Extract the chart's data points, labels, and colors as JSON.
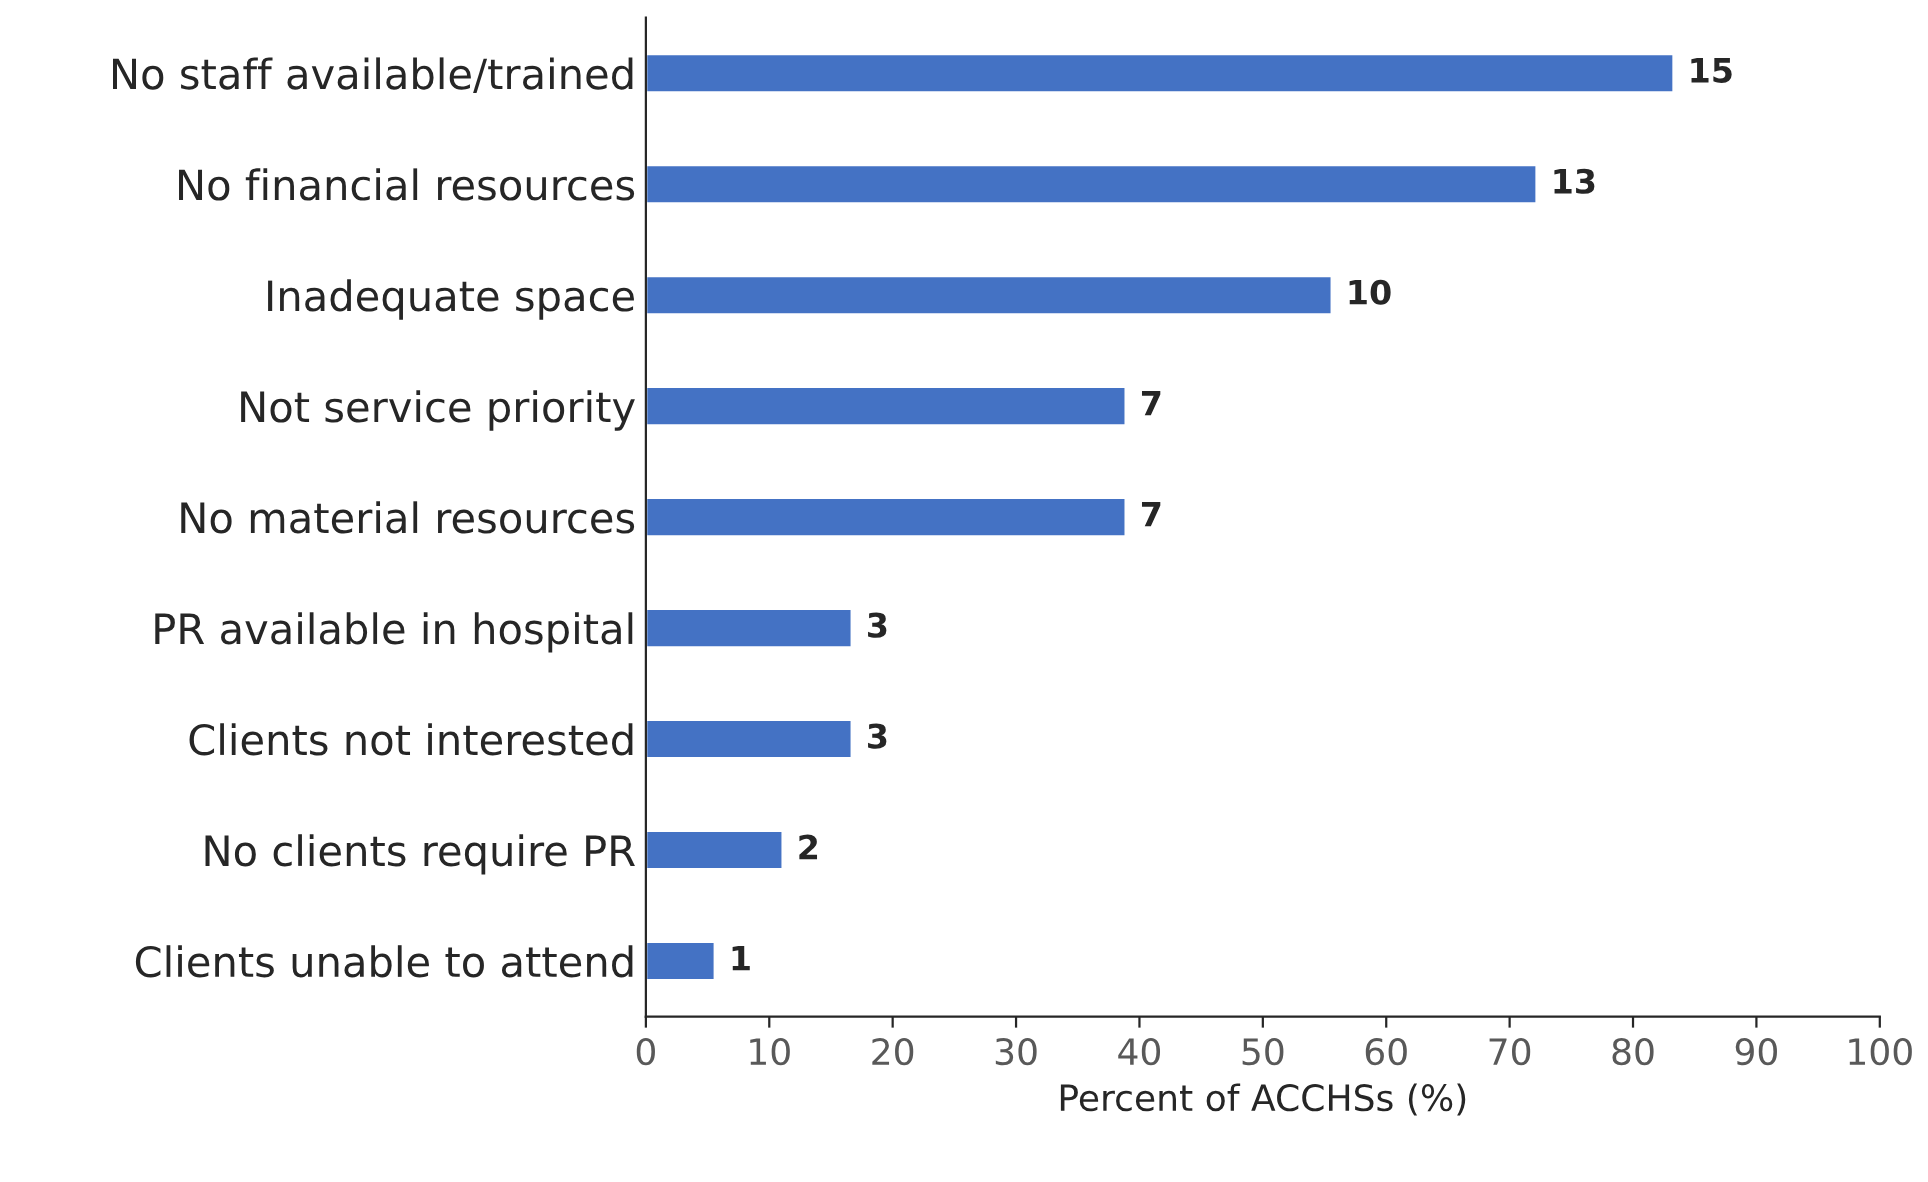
{
  "chart_data": {
    "type": "bar",
    "orientation": "horizontal",
    "categories": [
      "No staff available/trained",
      "No financial resources",
      "Inadequate space",
      "Not service priority",
      "No material resources",
      "PR available in hospital",
      "Clients not interested",
      "No clients require PR",
      "Clients unable to attend"
    ],
    "values": [
      83.3,
      72.2,
      55.6,
      38.9,
      38.9,
      16.7,
      16.7,
      11.1,
      5.6
    ],
    "annotations": [
      {
        "text": "15",
        "x": 83.3
      },
      {
        "text": "13",
        "x": 72.2
      },
      {
        "text": "10",
        "x": 55.6
      },
      {
        "text": "7",
        "x": 38.9
      },
      {
        "text": "7",
        "x": 38.9
      },
      {
        "text": "3",
        "x": 16.7
      },
      {
        "text": "3",
        "x": 16.7
      },
      {
        "text": "2",
        "x": 11.1
      },
      {
        "text": "1",
        "x": 5.6
      }
    ],
    "color": "#4472c4",
    "xlabel": "Percent of ACCHSs (%)",
    "xlim": [
      0,
      100
    ],
    "xticks": [
      0,
      10,
      20,
      30,
      40,
      50,
      60,
      70,
      80,
      90,
      100
    ],
    "grid": false,
    "legend": false
  }
}
